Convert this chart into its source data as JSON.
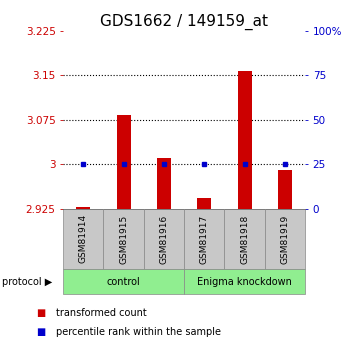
{
  "title": "GDS1662 / 149159_at",
  "samples": [
    "GSM81914",
    "GSM81915",
    "GSM81916",
    "GSM81917",
    "GSM81918",
    "GSM81919"
  ],
  "red_values": [
    2.928,
    3.083,
    3.01,
    2.943,
    3.158,
    2.99
  ],
  "blue_y_left": [
    3.0,
    3.0,
    3.0,
    3.0,
    3.0,
    3.0
  ],
  "ylim_left": [
    2.925,
    3.225
  ],
  "ylim_right": [
    0,
    100
  ],
  "yticks_left": [
    2.925,
    3.0,
    3.075,
    3.15,
    3.225
  ],
  "yticks_right": [
    0,
    25,
    50,
    75,
    100
  ],
  "ytick_labels_left": [
    "2.925",
    "3",
    "3.075",
    "3.15",
    "3.225"
  ],
  "ytick_labels_right": [
    "0",
    "25",
    "50",
    "75",
    "100%"
  ],
  "hlines": [
    3.0,
    3.075,
    3.15
  ],
  "protocol_groups": [
    {
      "label": "control",
      "start": 0,
      "end": 3,
      "color": "#90EE90"
    },
    {
      "label": "Enigma knockdown",
      "start": 3,
      "end": 6,
      "color": "#90EE90"
    }
  ],
  "bar_color": "#CC0000",
  "dot_color": "#0000CC",
  "bar_width": 0.35,
  "title_fontsize": 11,
  "tick_fontsize": 7.5
}
